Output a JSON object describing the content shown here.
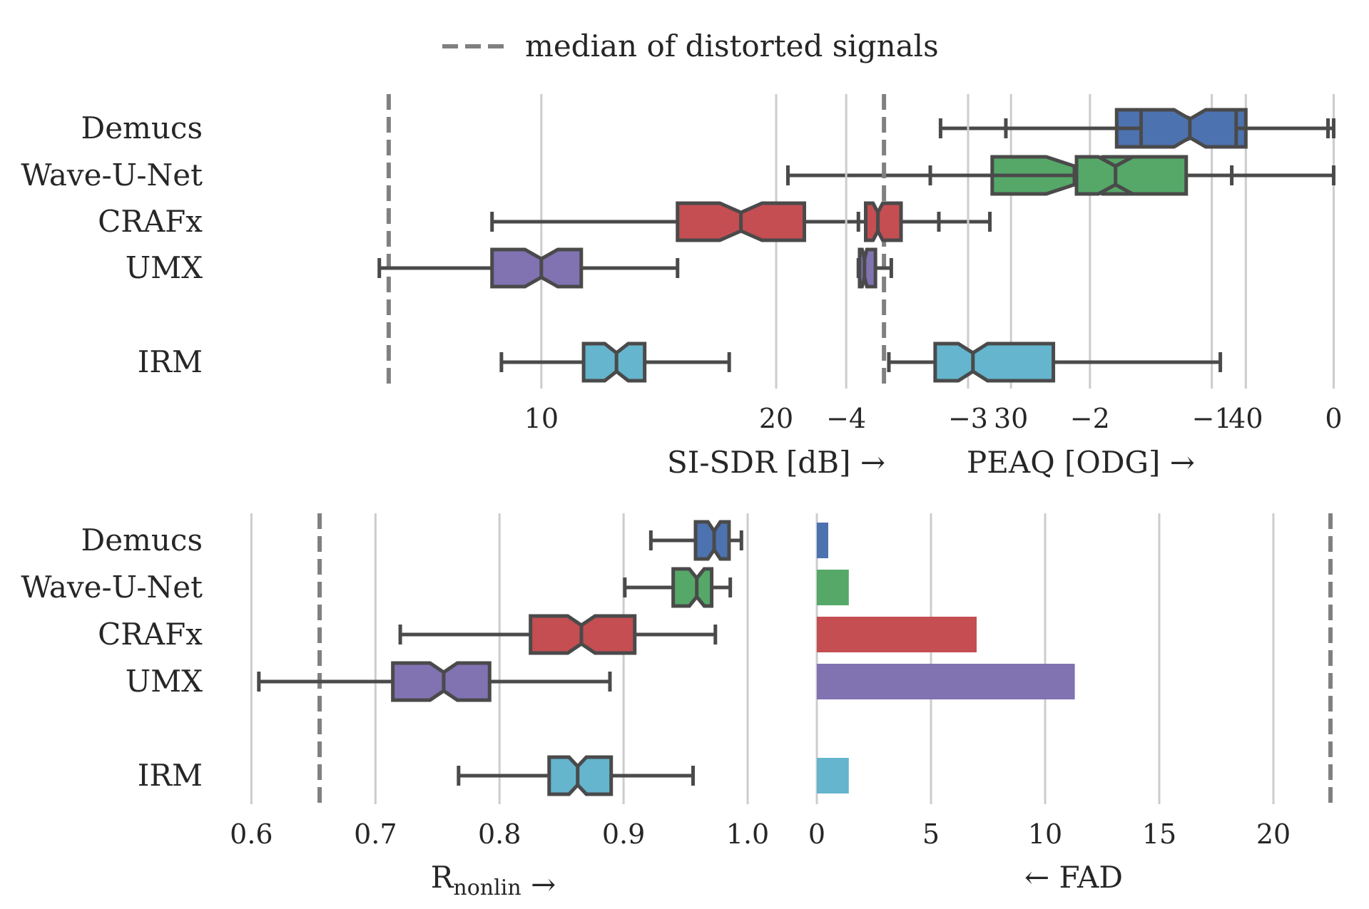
{
  "legend": {
    "label": "median of distorted signals",
    "color": "#808080"
  },
  "palette": {
    "Demucs": "#4c72b0",
    "Wave-U-Net": "#55a868",
    "CRAFx": "#c44e52",
    "UMX": "#8172b2",
    "IRM": "#64b5cd"
  },
  "chart_data": [
    {
      "type": "box",
      "panel": "top-left",
      "orientation": "horizontal",
      "categories": [
        "Demucs",
        "Wave-U-Net",
        "CRAFx",
        "UMX",
        "IRM"
      ],
      "xlabel": "SI-SDR [dB]",
      "xlabel_arrow": "→",
      "xlim": [
        -4,
        44
      ],
      "xticks": [
        10,
        20,
        30,
        40
      ],
      "xtick_labels": [
        "10",
        "20",
        "30",
        "40"
      ],
      "grid": true,
      "reference_line": 3.5,
      "boxes": [
        {
          "name": "Demucs",
          "whislo": 27,
          "q1": 34.5,
          "med": 37.7,
          "q3": 40,
          "whishi": 43.5,
          "notch": [
            36.7,
            38.7
          ]
        },
        {
          "name": "Wave-U-Net",
          "whislo": 20.5,
          "q1": 29.2,
          "med": 32.7,
          "q3": 35.8,
          "whishi": 39.4,
          "notch": [
            31.5,
            33.9
          ]
        },
        {
          "name": "CRAFx",
          "whislo": 7.9,
          "q1": 15.8,
          "med": 18.5,
          "q3": 21.2,
          "whishi": 29.1,
          "notch": [
            17.6,
            19.4
          ]
        },
        {
          "name": "UMX",
          "whislo": 3.1,
          "q1": 7.9,
          "med": 10,
          "q3": 11.7,
          "whishi": 15.8,
          "notch": [
            9.3,
            10.7
          ]
        },
        {
          "name": "IRM",
          "whislo": 8.3,
          "q1": 11.8,
          "med": 13.2,
          "q3": 14.4,
          "whishi": 18,
          "notch": [
            12.7,
            13.7
          ]
        }
      ]
    },
    {
      "type": "box",
      "panel": "top-right",
      "orientation": "horizontal",
      "categories": [
        "Demucs",
        "Wave-U-Net",
        "CRAFx",
        "UMX",
        "IRM"
      ],
      "xlabel": "PEAQ [ODG]",
      "xlabel_arrow": "→",
      "xlim": [
        -4.2,
        0.05
      ],
      "xticks": [
        -4,
        -3,
        -2,
        -1,
        0
      ],
      "xtick_labels": [
        "−4",
        "−3",
        "−2",
        "−1",
        "0"
      ],
      "grid": true,
      "reference_line": -3.69,
      "boxes": [
        {
          "name": "Demucs",
          "whislo": -2.69,
          "q1": -1.58,
          "med": -1.18,
          "q3": -0.8,
          "whishi": 0,
          "notch": [
            -1.31,
            -1.05
          ]
        },
        {
          "name": "Wave-U-Net",
          "whislo": -3.31,
          "q1": -2.11,
          "med": -1.79,
          "q3": -1.21,
          "whishi": 0,
          "notch": [
            -1.93,
            -1.65
          ]
        },
        {
          "name": "CRAFx",
          "whislo": -3.9,
          "q1": -3.84,
          "med": -3.74,
          "q3": -3.55,
          "whishi": -3.24,
          "notch": [
            -3.78,
            -3.7
          ]
        },
        {
          "name": "UMX",
          "whislo": -3.9,
          "q1": -3.89,
          "med": -3.85,
          "q3": -3.76,
          "whishi": -3.63,
          "notch": [
            -3.87,
            -3.83
          ]
        },
        {
          "name": "IRM",
          "whislo": -3.65,
          "q1": -3.27,
          "med": -2.96,
          "q3": -2.3,
          "whishi": -0.93,
          "notch": [
            -3.08,
            -2.84
          ]
        }
      ]
    },
    {
      "type": "box",
      "panel": "bottom-left",
      "orientation": "horizontal",
      "categories": [
        "Demucs",
        "Wave-U-Net",
        "CRAFx",
        "UMX",
        "IRM"
      ],
      "xlabel": "R",
      "xlabel_sub": "nonlin",
      "xlabel_arrow": "→",
      "xlim": [
        0.59,
        1.0
      ],
      "xticks": [
        0.6,
        0.7,
        0.8,
        0.9,
        1.0
      ],
      "xtick_labels": [
        "0.6",
        "0.7",
        "0.8",
        "0.9",
        "1.0"
      ],
      "grid": true,
      "reference_line": 0.655,
      "boxes": [
        {
          "name": "Demucs",
          "whislo": 0.922,
          "q1": 0.958,
          "med": 0.973,
          "q3": 0.985,
          "whishi": 0.995,
          "notch": [
            0.968,
            0.978
          ]
        },
        {
          "name": "Wave-U-Net",
          "whislo": 0.901,
          "q1": 0.94,
          "med": 0.959,
          "q3": 0.971,
          "whishi": 0.986,
          "notch": [
            0.953,
            0.965
          ]
        },
        {
          "name": "CRAFx",
          "whislo": 0.72,
          "q1": 0.825,
          "med": 0.866,
          "q3": 0.909,
          "whishi": 0.974,
          "notch": [
            0.855,
            0.877
          ]
        },
        {
          "name": "UMX",
          "whislo": 0.606,
          "q1": 0.714,
          "med": 0.755,
          "q3": 0.792,
          "whishi": 0.889,
          "notch": [
            0.744,
            0.766
          ]
        },
        {
          "name": "IRM",
          "whislo": 0.767,
          "q1": 0.84,
          "med": 0.863,
          "q3": 0.89,
          "whishi": 0.956,
          "notch": [
            0.856,
            0.87
          ]
        }
      ]
    },
    {
      "type": "bar",
      "panel": "bottom-right",
      "orientation": "horizontal",
      "categories": [
        "Demucs",
        "Wave-U-Net",
        "CRAFx",
        "UMX",
        "IRM"
      ],
      "values": [
        0.5,
        1.4,
        7.0,
        11.3,
        1.4
      ],
      "xlabel": "FAD",
      "xlabel_arrow": "←",
      "xlim": [
        0,
        22.5
      ],
      "xticks": [
        0,
        5,
        10,
        15,
        20
      ],
      "xtick_labels": [
        "0",
        "5",
        "10",
        "15",
        "20"
      ],
      "grid": true,
      "reference_line": 22.5
    }
  ]
}
